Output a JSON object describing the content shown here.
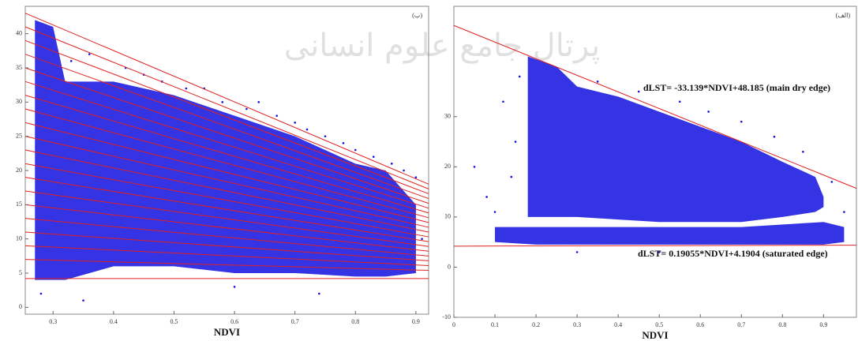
{
  "watermark": "پرتال جامع علوم انسانی",
  "chart_data": [
    {
      "type": "scatter",
      "panel_label": "(ب)",
      "x_label": "NDVI",
      "xlim": [
        0.254,
        0.921
      ],
      "ylim": [
        -1,
        44
      ],
      "xticks": [
        0.3,
        0.4,
        0.5,
        0.6,
        0.7,
        0.8,
        0.9
      ],
      "yticks": [
        0,
        5,
        10,
        15,
        20,
        25,
        30,
        35,
        40
      ],
      "color": "#1010e0",
      "line_color": "#e02020",
      "clouds": [
        {
          "x": [
            0.27,
            0.3,
            0.32,
            0.4,
            0.5,
            0.6,
            0.7,
            0.8,
            0.85,
            0.9
          ],
          "upper": [
            42,
            41,
            33,
            33,
            31,
            28,
            25,
            21,
            20,
            15
          ],
          "lower": [
            4,
            4,
            4,
            6,
            6,
            5,
            5,
            4.5,
            4.5,
            5
          ]
        }
      ],
      "points": {
        "x": [
          0.28,
          0.33,
          0.36,
          0.42,
          0.45,
          0.48,
          0.52,
          0.55,
          0.58,
          0.62,
          0.64,
          0.67,
          0.7,
          0.72,
          0.75,
          0.78,
          0.8,
          0.83,
          0.86,
          0.88,
          0.9,
          0.91,
          0.35,
          0.6,
          0.74
        ],
        "y": [
          2,
          36,
          37,
          35,
          34,
          33,
          32,
          32,
          30,
          29,
          30,
          28,
          27,
          26,
          25,
          24,
          23,
          22,
          21,
          20,
          19,
          10,
          1,
          3,
          2
        ]
      },
      "lines": [
        {
          "x": [
            0.254,
            0.921
          ],
          "y": [
            43,
            18
          ]
        },
        {
          "x": [
            0.254,
            0.921
          ],
          "y": [
            41,
            17.3
          ]
        },
        {
          "x": [
            0.254,
            0.921
          ],
          "y": [
            39,
            16.6
          ]
        },
        {
          "x": [
            0.254,
            0.921
          ],
          "y": [
            37,
            15.9
          ]
        },
        {
          "x": [
            0.254,
            0.921
          ],
          "y": [
            35,
            15.2
          ]
        },
        {
          "x": [
            0.254,
            0.921
          ],
          "y": [
            33,
            14.5
          ]
        },
        {
          "x": [
            0.254,
            0.921
          ],
          "y": [
            31,
            13.8
          ]
        },
        {
          "x": [
            0.254,
            0.921
          ],
          "y": [
            29,
            13.1
          ]
        },
        {
          "x": [
            0.254,
            0.921
          ],
          "y": [
            27,
            12.4
          ]
        },
        {
          "x": [
            0.254,
            0.921
          ],
          "y": [
            25,
            11.7
          ]
        },
        {
          "x": [
            0.254,
            0.921
          ],
          "y": [
            23,
            11
          ]
        },
        {
          "x": [
            0.254,
            0.921
          ],
          "y": [
            21,
            10.3
          ]
        },
        {
          "x": [
            0.254,
            0.921
          ],
          "y": [
            19,
            9.6
          ]
        },
        {
          "x": [
            0.254,
            0.921
          ],
          "y": [
            17,
            8.9
          ]
        },
        {
          "x": [
            0.254,
            0.921
          ],
          "y": [
            15,
            8.2
          ]
        },
        {
          "x": [
            0.254,
            0.921
          ],
          "y": [
            13,
            7.5
          ]
        },
        {
          "x": [
            0.254,
            0.921
          ],
          "y": [
            11,
            6.8
          ]
        },
        {
          "x": [
            0.254,
            0.921
          ],
          "y": [
            9,
            6.1
          ]
        },
        {
          "x": [
            0.254,
            0.921
          ],
          "y": [
            7,
            5.4
          ]
        },
        {
          "x": [
            0.254,
            0.921
          ],
          "y": [
            4.2,
            4.2
          ]
        }
      ],
      "annotations": []
    },
    {
      "type": "scatter",
      "panel_label": "(الف)",
      "x_label": "NDVI",
      "xlim": [
        0,
        0.98
      ],
      "ylim": [
        -10,
        52
      ],
      "xticks": [
        0,
        0.1,
        0.2,
        0.3,
        0.4,
        0.5,
        0.6,
        0.7,
        0.8,
        0.9
      ],
      "yticks": [
        -10,
        0,
        10,
        20,
        30
      ],
      "color": "#1010e0",
      "line_color": "#e02020",
      "clouds": [
        {
          "x": [
            0.18,
            0.25,
            0.3,
            0.4,
            0.5,
            0.6,
            0.7,
            0.8,
            0.88,
            0.9
          ],
          "upper": [
            42,
            40,
            36,
            34,
            31,
            28,
            25,
            21,
            18,
            14
          ],
          "lower": [
            10,
            10,
            10,
            9.5,
            9,
            9,
            9,
            10,
            11,
            12
          ]
        },
        {
          "x": [
            0.1,
            0.2,
            0.3,
            0.5,
            0.7,
            0.9,
            0.95
          ],
          "upper": [
            8,
            8,
            8,
            8,
            8,
            9,
            8
          ],
          "lower": [
            5,
            4.5,
            4.5,
            4.5,
            4.5,
            4.5,
            5
          ]
        }
      ],
      "points": {
        "x": [
          0.05,
          0.08,
          0.12,
          0.15,
          0.14,
          0.16,
          0.1,
          0.35,
          0.45,
          0.55,
          0.62,
          0.7,
          0.78,
          0.85,
          0.92,
          0.95,
          0.5,
          0.3
        ],
        "y": [
          20,
          14,
          33,
          25,
          18,
          38,
          11,
          37,
          35,
          33,
          31,
          29,
          26,
          23,
          17,
          11,
          3,
          3
        ]
      },
      "lines": [
        {
          "x": [
            0,
            0.98
          ],
          "y": [
            48.185,
            15.709
          ]
        },
        {
          "x": [
            0,
            0.98
          ],
          "y": [
            4.19,
            4.38
          ]
        }
      ],
      "annotations": [
        "dLST= -33.139*NDVI+48.185 (main dry edge)",
        "dLST= 0.19055*NDVI+4.1904 (saturated edge)"
      ]
    }
  ]
}
